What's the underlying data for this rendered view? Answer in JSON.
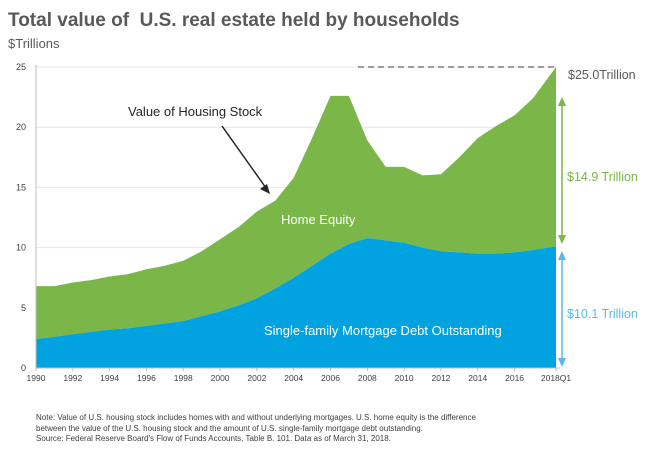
{
  "chart_data": {
    "type": "area",
    "title": "Total value of  U.S. real estate held by households",
    "subtitle": "$Trillions",
    "ylim": [
      0,
      25
    ],
    "y_ticks": [
      0,
      5,
      10,
      15,
      20,
      25
    ],
    "x_ticks": [
      "1990",
      "1992",
      "1994",
      "1996",
      "1998",
      "2000",
      "2002",
      "2004",
      "2006",
      "2008",
      "2010",
      "2012",
      "2014",
      "2016",
      "2018Q1"
    ],
    "x": [
      1990,
      1991,
      1992,
      1993,
      1994,
      1995,
      1996,
      1997,
      1998,
      1999,
      2000,
      2001,
      2002,
      2003,
      2004,
      2005,
      2006,
      2007,
      2008,
      2009,
      2010,
      2011,
      2012,
      2013,
      2014,
      2015,
      2016,
      2017,
      2018.25
    ],
    "series": [
      {
        "name": "Single-family Mortgage Debt Outstanding",
        "color": "#00a3e0",
        "values": [
          2.4,
          2.6,
          2.8,
          3.0,
          3.2,
          3.3,
          3.5,
          3.7,
          3.9,
          4.3,
          4.7,
          5.2,
          5.8,
          6.6,
          7.5,
          8.5,
          9.5,
          10.3,
          10.8,
          10.6,
          10.4,
          10.0,
          9.7,
          9.6,
          9.5,
          9.5,
          9.6,
          9.8,
          10.1
        ]
      },
      {
        "name": "Home Equity",
        "color": "#7ab648",
        "values": [
          4.4,
          4.2,
          4.3,
          4.3,
          4.4,
          4.5,
          4.7,
          4.8,
          5.0,
          5.4,
          6.0,
          6.5,
          7.2,
          7.3,
          8.3,
          10.6,
          13.1,
          12.3,
          8.1,
          6.1,
          6.3,
          6.0,
          6.4,
          7.9,
          9.6,
          10.6,
          11.4,
          12.6,
          14.9
        ]
      }
    ],
    "annotations": {
      "housing_stock": "Value of Housing Stock",
      "home_equity": "Home Equity",
      "mortgage_debt": "Single-family Mortgage Debt Outstanding",
      "total": "$25.0Trillion",
      "equity_total": "$14.9 Trillion",
      "debt_total": "$10.1 Trillion"
    }
  },
  "note": [
    "Note:  Value of U.S. housing stock includes homes with and without underlying mortgages.  U.S. home equity is the difference",
    "between the value of the U.S. housing stock and the amount of U.S. single-family mortgage debt outstanding.",
    "Source: Federal Reserve Board's Flow of Funds Accounts, Table B. 101. Data as of March 31, 2018."
  ],
  "colors": {
    "debt": "#00a3e0",
    "equity": "#7ab648",
    "arrow_debt": "#5bb8e8",
    "arrow_equity": "#7ab648"
  }
}
